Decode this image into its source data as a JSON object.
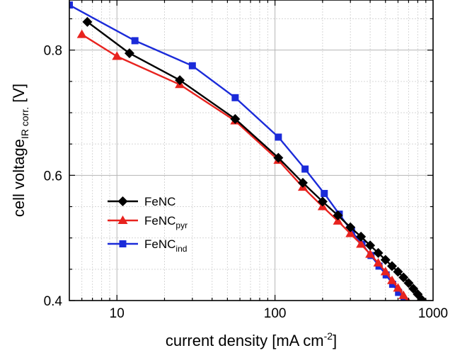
{
  "chart_data": {
    "type": "line",
    "x_scale": "log",
    "xlim": [
      5,
      1000
    ],
    "ylim": [
      0.4,
      0.88
    ],
    "xticks": [
      10,
      100,
      1000
    ],
    "xtick_labels": [
      "10",
      "100",
      "1000"
    ],
    "yticks": [
      0.4,
      0.6,
      0.8
    ],
    "ytick_labels": [
      "0.4",
      "0.6",
      "0.8"
    ],
    "grid": true,
    "legend_position": "lower-left",
    "xlabel": {
      "main": "current density [mA cm",
      "sup": "-2",
      "tail": "]"
    },
    "ylabel": {
      "main": "cell voltage",
      "sub": "IR corr.",
      "tail": "  [V]"
    },
    "series": [
      {
        "name": "FeNC",
        "name_sub": "",
        "color": "#000000",
        "marker": "diamond",
        "x": [
          6.5,
          12,
          25,
          56,
          105,
          150,
          200,
          250,
          300,
          350,
          400,
          450,
          500,
          550,
          600,
          650,
          700,
          750,
          800,
          850
        ],
        "y": [
          0.845,
          0.795,
          0.752,
          0.69,
          0.628,
          0.588,
          0.558,
          0.536,
          0.517,
          0.502,
          0.488,
          0.476,
          0.465,
          0.455,
          0.446,
          0.437,
          0.428,
          0.419,
          0.41,
          0.401
        ]
      },
      {
        "name": "FeNC",
        "name_sub": "pyr",
        "color": "#e8231f",
        "marker": "triangle",
        "x": [
          6,
          10,
          25,
          56,
          105,
          150,
          200,
          250,
          300,
          350,
          400,
          450,
          500,
          550,
          600,
          650,
          700
        ],
        "y": [
          0.825,
          0.79,
          0.745,
          0.687,
          0.624,
          0.581,
          0.55,
          0.527,
          0.507,
          0.49,
          0.474,
          0.46,
          0.446,
          0.432,
          0.42,
          0.408,
          0.397
        ]
      },
      {
        "name": "FeNC",
        "name_sub": "ind",
        "color": "#1b2bd9",
        "marker": "square",
        "x": [
          5,
          13,
          30,
          56,
          105,
          155,
          205,
          255,
          305,
          355,
          405,
          455,
          505,
          555,
          605,
          655
        ],
        "y": [
          0.872,
          0.815,
          0.775,
          0.724,
          0.661,
          0.61,
          0.571,
          0.538,
          0.511,
          0.49,
          0.472,
          0.455,
          0.441,
          0.426,
          0.413,
          0.4
        ]
      }
    ]
  }
}
